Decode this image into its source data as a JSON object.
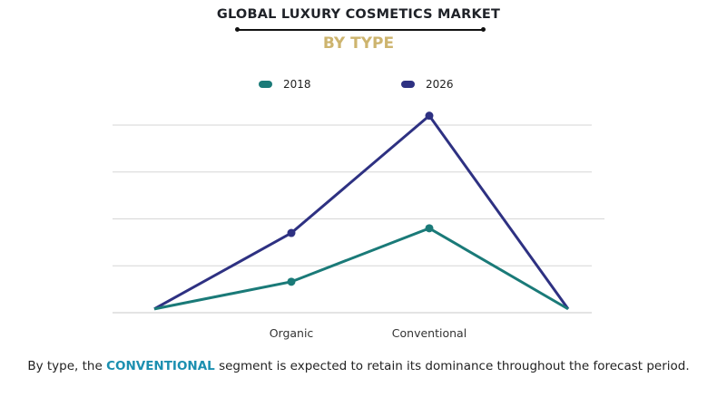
{
  "chart_data": {
    "type": "line",
    "title": "GLOBAL LUXURY COSMETICS MARKET",
    "subtitle": "BY TYPE",
    "categories": [
      "",
      "Organic",
      "Conventional",
      ""
    ],
    "series": [
      {
        "name": "2018",
        "color": "#1a7a78",
        "values": [
          0.08,
          0.66,
          1.8,
          0.08
        ]
      },
      {
        "name": "2026",
        "color": "#2e3182",
        "values": [
          0.08,
          1.7,
          4.2,
          0.08
        ]
      }
    ],
    "ylim": [
      0,
      4.4
    ],
    "gridlines": [
      0,
      1,
      2,
      3,
      4
    ],
    "grid": true,
    "y_tick_labels": false,
    "legend_placement": "top-center",
    "markers": "circle at Organic and Conventional points"
  },
  "caption": {
    "prefix": "By type, the ",
    "highlight": "CONVENTIONAL",
    "suffix": " segment is expected to retain its dominance throughout the forecast period.",
    "highlight_color": "#1b8fb0"
  }
}
